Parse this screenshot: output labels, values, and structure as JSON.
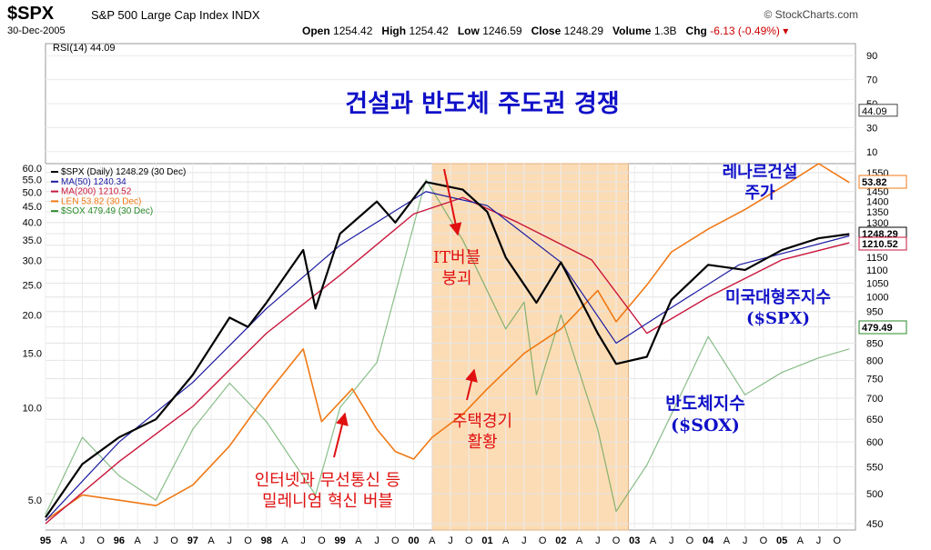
{
  "header": {
    "symbol": "$SPX",
    "index_name": "S&P 500 Large Cap Index",
    "exchange": "INDX",
    "date": "30-Dec-2005",
    "source": "© StockCharts.com",
    "open_label": "Open",
    "open": "1254.42",
    "high_label": "High",
    "high": "1254.42",
    "low_label": "Low",
    "low": "1246.59",
    "close_label": "Close",
    "close": "1248.29",
    "volume_label": "Volume",
    "volume": "1.3B",
    "chg_label": "Chg",
    "chg": "-6.13 (-0.49%)"
  },
  "rsi_panel": {
    "label": "RSI(14) 44.09",
    "current": "44.09",
    "ticks": [
      "90",
      "70",
      "50",
      "30",
      "10"
    ]
  },
  "legend": [
    {
      "label": "$SPX (Daily) 1248.29 (30 Dec)",
      "color": "#000000"
    },
    {
      "label": "MA(50) 1240.34",
      "color": "#1a1aa0"
    },
    {
      "label": "MA(200) 1210.52",
      "color": "#c8163c"
    },
    {
      "label": "LEN 53.82 (30 Dec)",
      "color": "#f07814"
    },
    {
      "label": "$SOX 479.49 (30 Dec)",
      "color": "#2a8a2a"
    }
  ],
  "annotations": {
    "title": "건설과 반도체 주도권 경쟁",
    "it_bubble_1": "IT버블",
    "it_bubble_2": "붕괴",
    "housing_1": "주택경기",
    "housing_2": "활황",
    "millennium_1": "인터넷과 무선통신 등",
    "millennium_2": "밀레니엄 혁신 버블",
    "lennar_1": "레나르건설",
    "lennar_2": "주가",
    "spx_1": "미국대형주지수",
    "spx_2": "($SPX)",
    "sox_1": "반도체지수",
    "sox_2": "($SOX)"
  },
  "value_badges": {
    "len": "53.82",
    "spx": "1248.29",
    "ma200": "1210.52",
    "sox": "479.49"
  },
  "colors": {
    "spx": "#000000",
    "ma50": "#1a1aa0",
    "ma200": "#c8163c",
    "lennar": "#f07814",
    "sox": "#2a8a2a",
    "shade": "#fbdcb5",
    "title": "#1010c8",
    "note_red": "#e01010",
    "note_blue": "#1010c8"
  },
  "chart_data": {
    "type": "line",
    "x_range": [
      "1995-01",
      "2005-12"
    ],
    "x_ticks": [
      "95",
      "A",
      "J",
      "O",
      "96",
      "A",
      "J",
      "O",
      "97",
      "A",
      "J",
      "O",
      "98",
      "A",
      "J",
      "O",
      "99",
      "A",
      "J",
      "O",
      "00",
      "A",
      "J",
      "O",
      "01",
      "A",
      "J",
      "O",
      "02",
      "A",
      "J",
      "O",
      "03",
      "A",
      "J",
      "O",
      "04",
      "A",
      "J",
      "O",
      "05",
      "A",
      "J",
      "O"
    ],
    "right_axis_ticks": [
      1550,
      1500,
      1450,
      1400,
      1350,
      1300,
      1250,
      1200,
      1150,
      1100,
      1050,
      1000,
      950,
      900,
      850,
      800,
      750,
      700,
      650,
      600,
      550,
      500,
      450
    ],
    "left_axis_ticks": [
      "60.0",
      "55.0",
      "50.0",
      "45.0",
      "40.0",
      "35.0",
      "30.0",
      "25.0",
      "20.0",
      "15.0",
      "10.0",
      "5.0"
    ],
    "log_scale": true,
    "shaded_period": [
      "2000-04",
      "2002-12"
    ],
    "series": [
      {
        "name": "$SPX",
        "points": [
          [
            "1995-01",
            460
          ],
          [
            "1995-07",
            555
          ],
          [
            "1996-01",
            610
          ],
          [
            "1996-07",
            650
          ],
          [
            "1997-01",
            760
          ],
          [
            "1997-07",
            930
          ],
          [
            "1997-10",
            900
          ],
          [
            "1998-01",
            980
          ],
          [
            "1998-07",
            1180
          ],
          [
            "1998-09",
            960
          ],
          [
            "1999-01",
            1250
          ],
          [
            "1999-07",
            1400
          ],
          [
            "1999-10",
            1300
          ],
          [
            "2000-03",
            1500
          ],
          [
            "2000-09",
            1460
          ],
          [
            "2001-01",
            1350
          ],
          [
            "2001-04",
            1150
          ],
          [
            "2001-09",
            980
          ],
          [
            "2002-01",
            1130
          ],
          [
            "2002-07",
            880
          ],
          [
            "2002-10",
            790
          ],
          [
            "2003-03",
            810
          ],
          [
            "2003-07",
            990
          ],
          [
            "2004-01",
            1120
          ],
          [
            "2004-07",
            1100
          ],
          [
            "2005-01",
            1180
          ],
          [
            "2005-07",
            1230
          ],
          [
            "2005-12",
            1248.29
          ]
        ]
      },
      {
        "name": "MA(50)",
        "points": [
          [
            "1995-01",
            455
          ],
          [
            "1996-01",
            600
          ],
          [
            "1997-01",
            740
          ],
          [
            "1998-01",
            960
          ],
          [
            "1999-01",
            1200
          ],
          [
            "2000-03",
            1450
          ],
          [
            "2001-01",
            1380
          ],
          [
            "2002-01",
            1130
          ],
          [
            "2002-10",
            850
          ],
          [
            "2003-06",
            950
          ],
          [
            "2004-06",
            1120
          ],
          [
            "2005-12",
            1240.34
          ]
        ]
      },
      {
        "name": "MA(200)",
        "points": [
          [
            "1995-01",
            450
          ],
          [
            "1996-01",
            560
          ],
          [
            "1997-01",
            680
          ],
          [
            "1998-01",
            880
          ],
          [
            "1999-01",
            1080
          ],
          [
            "2000-01",
            1340
          ],
          [
            "2000-09",
            1420
          ],
          [
            "2001-06",
            1300
          ],
          [
            "2002-06",
            1140
          ],
          [
            "2003-03",
            880
          ],
          [
            "2004-01",
            1000
          ],
          [
            "2005-01",
            1140
          ],
          [
            "2005-12",
            1210.52
          ]
        ]
      },
      {
        "name": "LEN",
        "points": [
          [
            "1995-01",
            4.3
          ],
          [
            "1995-07",
            5.2
          ],
          [
            "1996-01",
            5.0
          ],
          [
            "1996-07",
            4.8
          ],
          [
            "1997-01",
            5.6
          ],
          [
            "1997-07",
            7.5
          ],
          [
            "1998-01",
            11.0
          ],
          [
            "1998-07",
            15.5
          ],
          [
            "1998-10",
            9.0
          ],
          [
            "1999-03",
            11.5
          ],
          [
            "1999-07",
            8.5
          ],
          [
            "1999-10",
            7.2
          ],
          [
            "2000-01",
            6.8
          ],
          [
            "2000-04",
            8.0
          ],
          [
            "2000-09",
            9.5
          ],
          [
            "2001-01",
            11.5
          ],
          [
            "2001-07",
            15.0
          ],
          [
            "2002-01",
            18.0
          ],
          [
            "2002-07",
            24.0
          ],
          [
            "2002-10",
            19.0
          ],
          [
            "2003-03",
            25.0
          ],
          [
            "2003-07",
            32.0
          ],
          [
            "2004-01",
            38.0
          ],
          [
            "2004-07",
            44.0
          ],
          [
            "2005-01",
            52.0
          ],
          [
            "2005-07",
            62.0
          ],
          [
            "2005-12",
            53.82
          ]
        ]
      },
      {
        "name": "$SOX",
        "points": [
          [
            "1995-01",
            4.5
          ],
          [
            "1995-07",
            8.0
          ],
          [
            "1996-01",
            6.0
          ],
          [
            "1996-07",
            5.0
          ],
          [
            "1997-01",
            8.5
          ],
          [
            "1997-07",
            12.0
          ],
          [
            "1998-01",
            9.0
          ],
          [
            "1998-09",
            5.2
          ],
          [
            "1999-01",
            10.0
          ],
          [
            "1999-07",
            14.0
          ],
          [
            "2000-03",
            55.0
          ],
          [
            "2000-09",
            35.0
          ],
          [
            "2001-04",
            18.0
          ],
          [
            "2001-07",
            22.0
          ],
          [
            "2001-09",
            11.0
          ],
          [
            "2002-01",
            20.0
          ],
          [
            "2002-07",
            8.5
          ],
          [
            "2002-10",
            4.6
          ],
          [
            "2003-03",
            6.5
          ],
          [
            "2003-07",
            9.5
          ],
          [
            "2004-01",
            17.0
          ],
          [
            "2004-07",
            11.0
          ],
          [
            "2005-01",
            13.0
          ],
          [
            "2005-07",
            14.5
          ],
          [
            "2005-12",
            15.5
          ]
        ]
      }
    ]
  }
}
